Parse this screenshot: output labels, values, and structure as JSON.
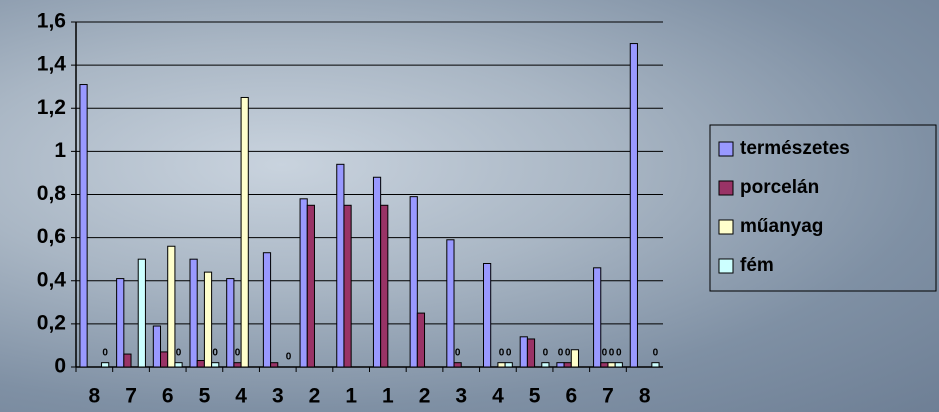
{
  "chart_data": {
    "type": "bar",
    "categories": [
      "8",
      "7",
      "6",
      "5",
      "4",
      "3",
      "2",
      "1",
      "1",
      "2",
      "3",
      "4",
      "5",
      "6",
      "7",
      "8"
    ],
    "series": [
      {
        "name": "természetes",
        "color": "#9999ff",
        "values": [
          1.31,
          0.41,
          0.19,
          0.5,
          0.41,
          0.53,
          0.78,
          0.94,
          0.88,
          0.79,
          0.59,
          0.48,
          0.14,
          0.02,
          0.46,
          1.5
        ],
        "value_labels": [
          null,
          null,
          null,
          null,
          null,
          null,
          null,
          null,
          null,
          null,
          null,
          null,
          null,
          "0",
          null,
          null
        ]
      },
      {
        "name": "porcelán",
        "color": "#993366",
        "values": [
          0,
          0.06,
          0.07,
          0.03,
          0.02,
          0.02,
          0.75,
          0.75,
          0.75,
          0.25,
          0.02,
          0,
          0.13,
          0.02,
          0.02,
          0
        ],
        "value_labels": [
          null,
          null,
          null,
          null,
          "0",
          null,
          null,
          null,
          null,
          null,
          "0",
          null,
          null,
          "0",
          "0",
          null
        ]
      },
      {
        "name": "műanyag",
        "color": "#ffffcc",
        "values": [
          0,
          0,
          0.56,
          0.44,
          1.25,
          0,
          0,
          0,
          0,
          0,
          0,
          0.02,
          0,
          0.08,
          0.02,
          0
        ],
        "value_labels": [
          null,
          null,
          null,
          null,
          null,
          null,
          null,
          null,
          null,
          null,
          null,
          "0",
          null,
          null,
          "0",
          null
        ]
      },
      {
        "name": "fém",
        "color": "#ccffff",
        "values": [
          0.02,
          0.5,
          0.02,
          0.02,
          0,
          0,
          0,
          0,
          0,
          0,
          0,
          0.02,
          0.02,
          0,
          0.02,
          0.02
        ],
        "value_labels": [
          "0",
          null,
          "0",
          "0",
          null,
          "0",
          null,
          null,
          null,
          null,
          null,
          "0",
          "0",
          null,
          "0",
          "0"
        ]
      }
    ],
    "ylim": [
      0,
      1.6
    ],
    "yticks": [
      0,
      {
        "value": 0.2,
        "label": "0,2"
      },
      {
        "value": 0.4,
        "label": "0,4"
      },
      {
        "value": 0.6,
        "label": "0,6"
      },
      {
        "value": 0.8,
        "label": "0,8"
      },
      1,
      {
        "value": 1.2,
        "label": "1,2"
      },
      {
        "value": 1.4,
        "label": "1,4"
      },
      {
        "value": 1.6,
        "label": "1,6"
      }
    ],
    "grid": true,
    "legend": "right"
  }
}
